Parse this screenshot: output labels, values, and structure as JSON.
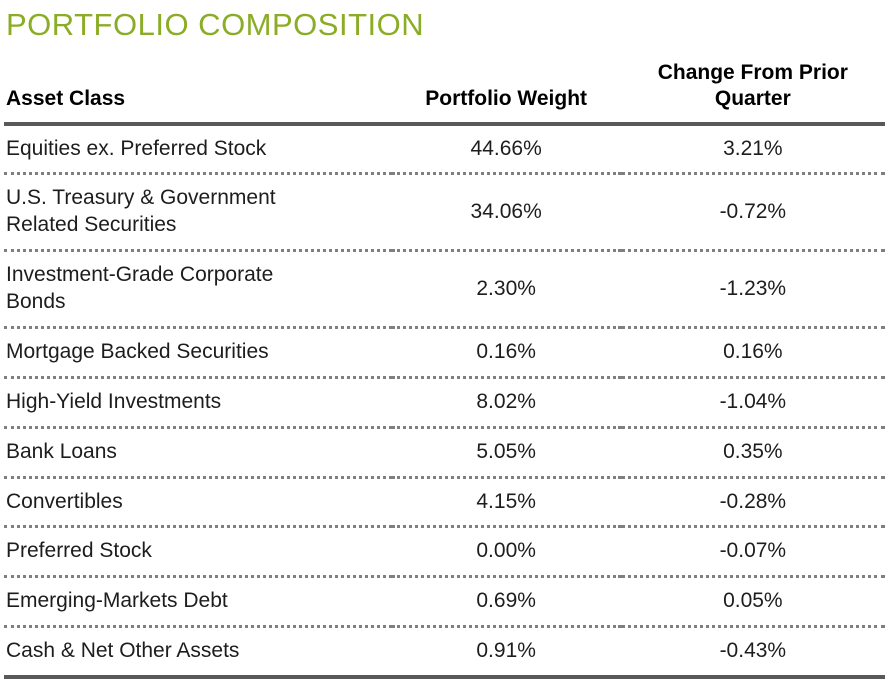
{
  "title": "PORTFOLIO COMPOSITION",
  "colors": {
    "accent_green": "#8BAC25",
    "rule_dark": "#595959",
    "rule_dotted": "#7F7F7F",
    "text": "#1D1D1D"
  },
  "table": {
    "headers": [
      "Asset Class",
      "Portfolio Weight",
      "Change From Prior Quarter"
    ],
    "rows": [
      {
        "asset": "Equities ex. Preferred Stock",
        "weight": "44.66%",
        "change": "3.21%"
      },
      {
        "asset": "U.S. Treasury & Government Related Securities",
        "weight": "34.06%",
        "change": "-0.72%"
      },
      {
        "asset": "Investment-Grade Corporate Bonds",
        "weight": "2.30%",
        "change": "-1.23%"
      },
      {
        "asset": "Mortgage Backed Securities",
        "weight": "0.16%",
        "change": "0.16%"
      },
      {
        "asset": "High-Yield Investments",
        "weight": "8.02%",
        "change": "-1.04%"
      },
      {
        "asset": "Bank Loans",
        "weight": "5.05%",
        "change": "0.35%"
      },
      {
        "asset": "Convertibles",
        "weight": "4.15%",
        "change": "-0.28%"
      },
      {
        "asset": "Preferred Stock",
        "weight": "0.00%",
        "change": "-0.07%"
      },
      {
        "asset": "Emerging-Markets Debt",
        "weight": "0.69%",
        "change": "0.05%"
      },
      {
        "asset": "Cash & Net Other Assets",
        "weight": "0.91%",
        "change": "-0.43%"
      }
    ]
  }
}
